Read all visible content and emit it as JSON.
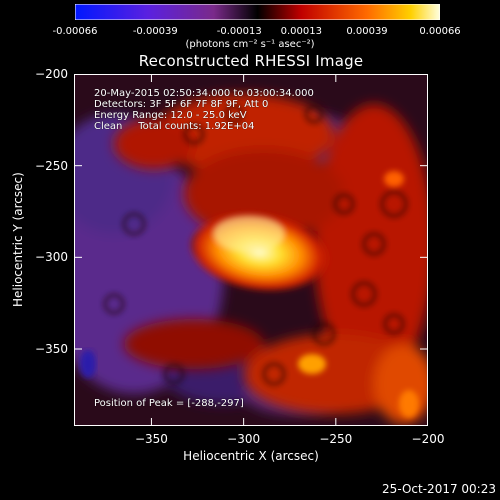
{
  "colorbar": {
    "ticks": [
      "-0.00066",
      "-0.00039",
      "-0.00013",
      "0.00013",
      "0.00039",
      "0.00066"
    ],
    "units": "(photons cm⁻² s⁻¹ asec⁻²)"
  },
  "title": "Reconstructed RHESSI Image",
  "info": {
    "time_range": "20-May-2015 02:50:34.000 to 03:00:34.000",
    "detectors": "Detectors: 3F 5F 6F 7F 8F 9F, Att 0",
    "energy": "Energy Range: 12.0 - 25.0 keV",
    "clean": "Clean     Total counts: 1.92E+04",
    "peak": "Position of Peak = [-288,-297]"
  },
  "axes": {
    "xlabel": "Heliocentric X (arcsec)",
    "ylabel": "Heliocentric Y (arcsec)",
    "xrange": [
      -392,
      -200
    ],
    "yrange": [
      -392,
      -200
    ],
    "x_ticks": [
      {
        "value": -350,
        "label": "−350"
      },
      {
        "value": -300,
        "label": "−300"
      },
      {
        "value": -250,
        "label": "−250"
      },
      {
        "value": -200,
        "label": "−200"
      }
    ],
    "y_ticks": [
      {
        "value": -200,
        "label": "−200"
      },
      {
        "value": -250,
        "label": "−250"
      },
      {
        "value": -300,
        "label": "−300"
      },
      {
        "value": -350,
        "label": "−350"
      }
    ]
  },
  "datestamp": "25-Oct-2017 00:23"
}
